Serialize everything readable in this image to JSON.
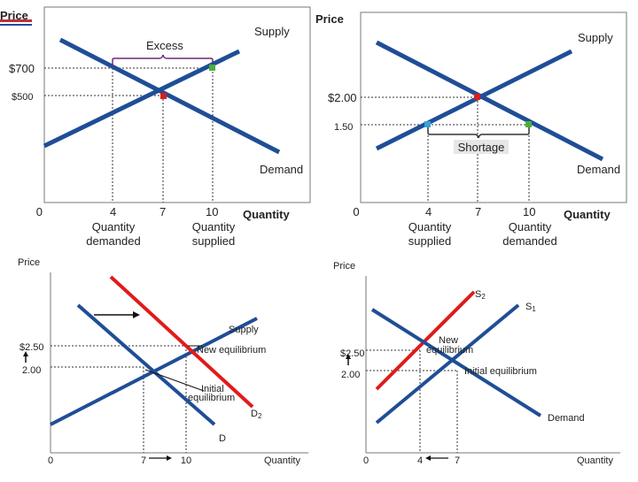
{
  "tl": {
    "price_label": "Price",
    "supply_label": "Supply",
    "excess_label": "Excess",
    "demand_label": "Demand",
    "p700": "$700",
    "p500": "$500",
    "x0": "0",
    "x4": "4",
    "x7": "7",
    "x10": "10",
    "qty_label": "Quantity",
    "qd1": "Quantity",
    "qd2": "demanded",
    "qs1": "Quantity",
    "qs2": "supplied"
  },
  "tr": {
    "price_label": "Price",
    "supply_label": "Supply",
    "demand_label": "Demand",
    "shortage_label": "Shortage",
    "p200": "$2.00",
    "p150": "1.50",
    "x0": "0",
    "x4": "4",
    "x7": "7",
    "x10": "10",
    "qty_label": "Quantity",
    "qs1": "Quantity",
    "qs2": "supplied",
    "qd1": "Quantity",
    "qd2": "demanded"
  },
  "bl": {
    "price_label": "Price",
    "supply_label": "Supply",
    "new_eq": "New equilibrium",
    "init_eq1": "Initial",
    "init_eq2": "equilibrium",
    "d2_main": "D",
    "d2_sub": "2",
    "d_label": "D",
    "p250": "$2.50",
    "p200": "2.00",
    "x0": "0",
    "x7": "7",
    "x10": "10",
    "qty_label": "Quantity"
  },
  "br": {
    "price_label": "Price",
    "s2_main": "S",
    "s2_sub": "2",
    "s1_main": "S",
    "s1_sub": "1",
    "new_eq1": "New",
    "new_eq2": "equilibrium",
    "init_eq": "Initial equilibrium",
    "demand_label": "Demand",
    "p250": "$2.50",
    "p200": "2.00",
    "x0": "0",
    "x4": "4",
    "x7": "7",
    "qty_label": "Quantity"
  },
  "colors": {
    "curve_blue": "#1f4e96",
    "curve_red": "#e01b1b",
    "point_red": "#d42020",
    "point_green": "#4cae3a",
    "point_lightblue": "#3aa0dc",
    "accent_bar": "#c0303a"
  }
}
